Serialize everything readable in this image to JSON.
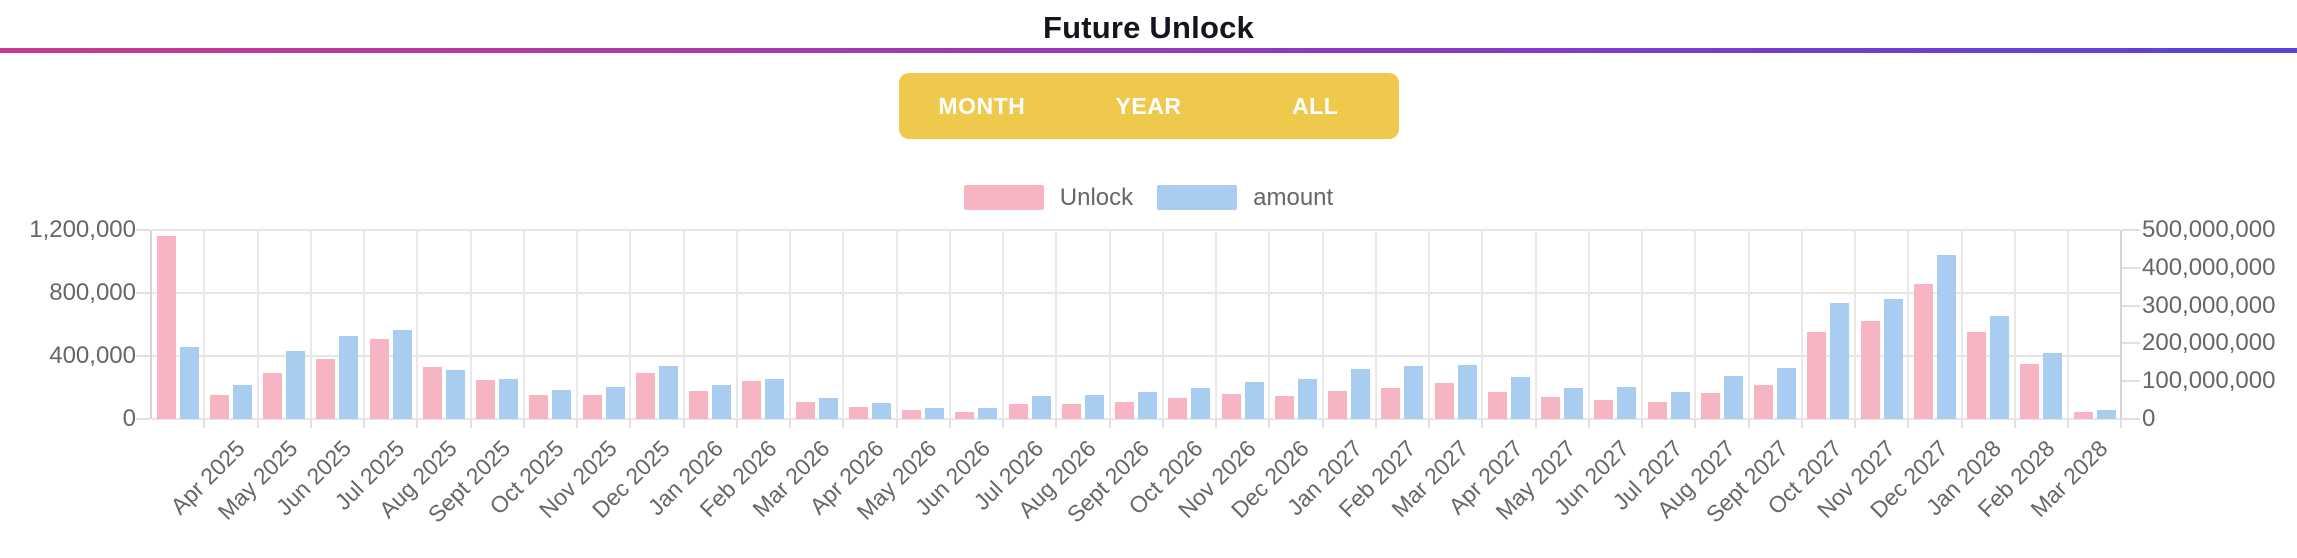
{
  "header": {
    "title": "Future Unlock"
  },
  "range_toggle": {
    "options": [
      {
        "id": "month",
        "label": "MONTH"
      },
      {
        "id": "year",
        "label": "YEAR"
      },
      {
        "id": "all",
        "label": "ALL"
      }
    ],
    "background_color": "#efc94c"
  },
  "legend": {
    "items": [
      {
        "label": "Unlock",
        "color": "#f7b5c4"
      },
      {
        "label": "amount",
        "color": "#a9cdf0"
      }
    ]
  },
  "colors": {
    "divider_gradient": [
      "#c93a8e",
      "#8c39c4",
      "#5843d8"
    ],
    "unlock_pink": "#f7b5c4",
    "amount_blue": "#a9cdf0",
    "axis_text": "#666666",
    "gridline": "#e6e6e6"
  },
  "chart_data": {
    "type": "bar",
    "title": "Future Unlock",
    "grid": true,
    "legend_position": "top",
    "categories": [
      "",
      "Apr 2025",
      "May 2025",
      "Jun 2025",
      "Jul 2025",
      "Aug 2025",
      "Sept 2025",
      "Oct 2025",
      "Nov 2025",
      "Dec 2025",
      "Jan 2026",
      "Feb 2026",
      "Mar 2026",
      "Apr 2026",
      "May 2026",
      "Jun 2026",
      "Jul 2026",
      "Aug 2026",
      "Sept 2026",
      "Oct 2026",
      "Nov 2026",
      "Dec 2026",
      "Jan 2027",
      "Feb 2027",
      "Mar 2027",
      "Apr 2027",
      "May 2027",
      "Jun 2027",
      "Jul 2027",
      "Aug 2027",
      "Sept 2027",
      "Oct 2027",
      "Nov 2027",
      "Dec 2027",
      "Jan 2028",
      "Feb 2028",
      "Mar 2028"
    ],
    "series": [
      {
        "name": "Unlock",
        "axis": "left",
        "color": "#f7b5c4",
        "values": [
          1165000,
          150000,
          290000,
          380000,
          510000,
          330000,
          250000,
          150000,
          150000,
          295000,
          175000,
          240000,
          110000,
          75000,
          57000,
          45000,
          95000,
          95000,
          107000,
          132000,
          158000,
          145000,
          176000,
          195000,
          227000,
          170000,
          139000,
          120000,
          107000,
          164000,
          214000,
          554000,
          624000,
          860000,
          552000,
          347000,
          44000
        ]
      },
      {
        "name": "amount",
        "axis": "right",
        "color": "#a9cdf0",
        "values": [
          190000000,
          90000000,
          180000000,
          220000000,
          235000000,
          130000000,
          105000000,
          78000000,
          85000000,
          140000000,
          90000000,
          105000000,
          55000000,
          42000000,
          30000000,
          30000000,
          60000000,
          63000000,
          71000000,
          81000000,
          99000000,
          105000000,
          131000000,
          141000000,
          144000000,
          110000000,
          81000000,
          84000000,
          71000000,
          115000000,
          136000000,
          306000000,
          317000000,
          433000000,
          272000000,
          174000000,
          24000000
        ]
      }
    ],
    "left_axis": {
      "max": 1200000,
      "tick_labels": [
        "1,200,000",
        "800,000",
        "400,000",
        "0"
      ]
    },
    "right_axis": {
      "max": 500000000,
      "tick_labels": [
        "500,000,000",
        "400,000,000",
        "300,000,000",
        "200,000,000",
        "100,000,000",
        "0"
      ]
    }
  }
}
